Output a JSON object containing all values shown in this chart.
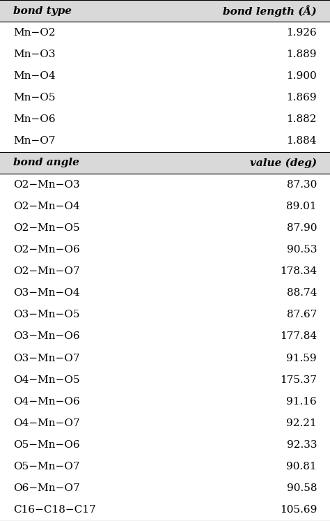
{
  "header1_left": "bond type",
  "header1_right": "bond length (Å)",
  "bonds": [
    [
      "Mn−O2",
      "1.926"
    ],
    [
      "Mn−O3",
      "1.889"
    ],
    [
      "Mn−O4",
      "1.900"
    ],
    [
      "Mn−O5",
      "1.869"
    ],
    [
      "Mn−O6",
      "1.882"
    ],
    [
      "Mn−O7",
      "1.884"
    ]
  ],
  "header2_left": "bond angle",
  "header2_right": "value (deg)",
  "angles": [
    [
      "O2−Mn−O3",
      "87.30"
    ],
    [
      "O2−Mn−O4",
      "89.01"
    ],
    [
      "O2−Mn−O5",
      "87.90"
    ],
    [
      "O2−Mn−O6",
      "90.53"
    ],
    [
      "O2−Mn−O7",
      "178.34"
    ],
    [
      "O3−Mn−O4",
      "88.74"
    ],
    [
      "O3−Mn−O5",
      "87.67"
    ],
    [
      "O3−Mn−O6",
      "177.84"
    ],
    [
      "O3−Mn−O7",
      "91.59"
    ],
    [
      "O4−Mn−O5",
      "175.37"
    ],
    [
      "O4−Mn−O6",
      "91.16"
    ],
    [
      "O4−Mn−O7",
      "92.21"
    ],
    [
      "O5−Mn−O6",
      "92.33"
    ],
    [
      "O5−Mn−O7",
      "90.81"
    ],
    [
      "O6−Mn−O7",
      "90.58"
    ],
    [
      "C16−C18−C17",
      "105.69"
    ]
  ],
  "header_bg": "#d9d9d9",
  "row_bg": "#ffffff",
  "font_size": 11,
  "header_font_size": 11
}
